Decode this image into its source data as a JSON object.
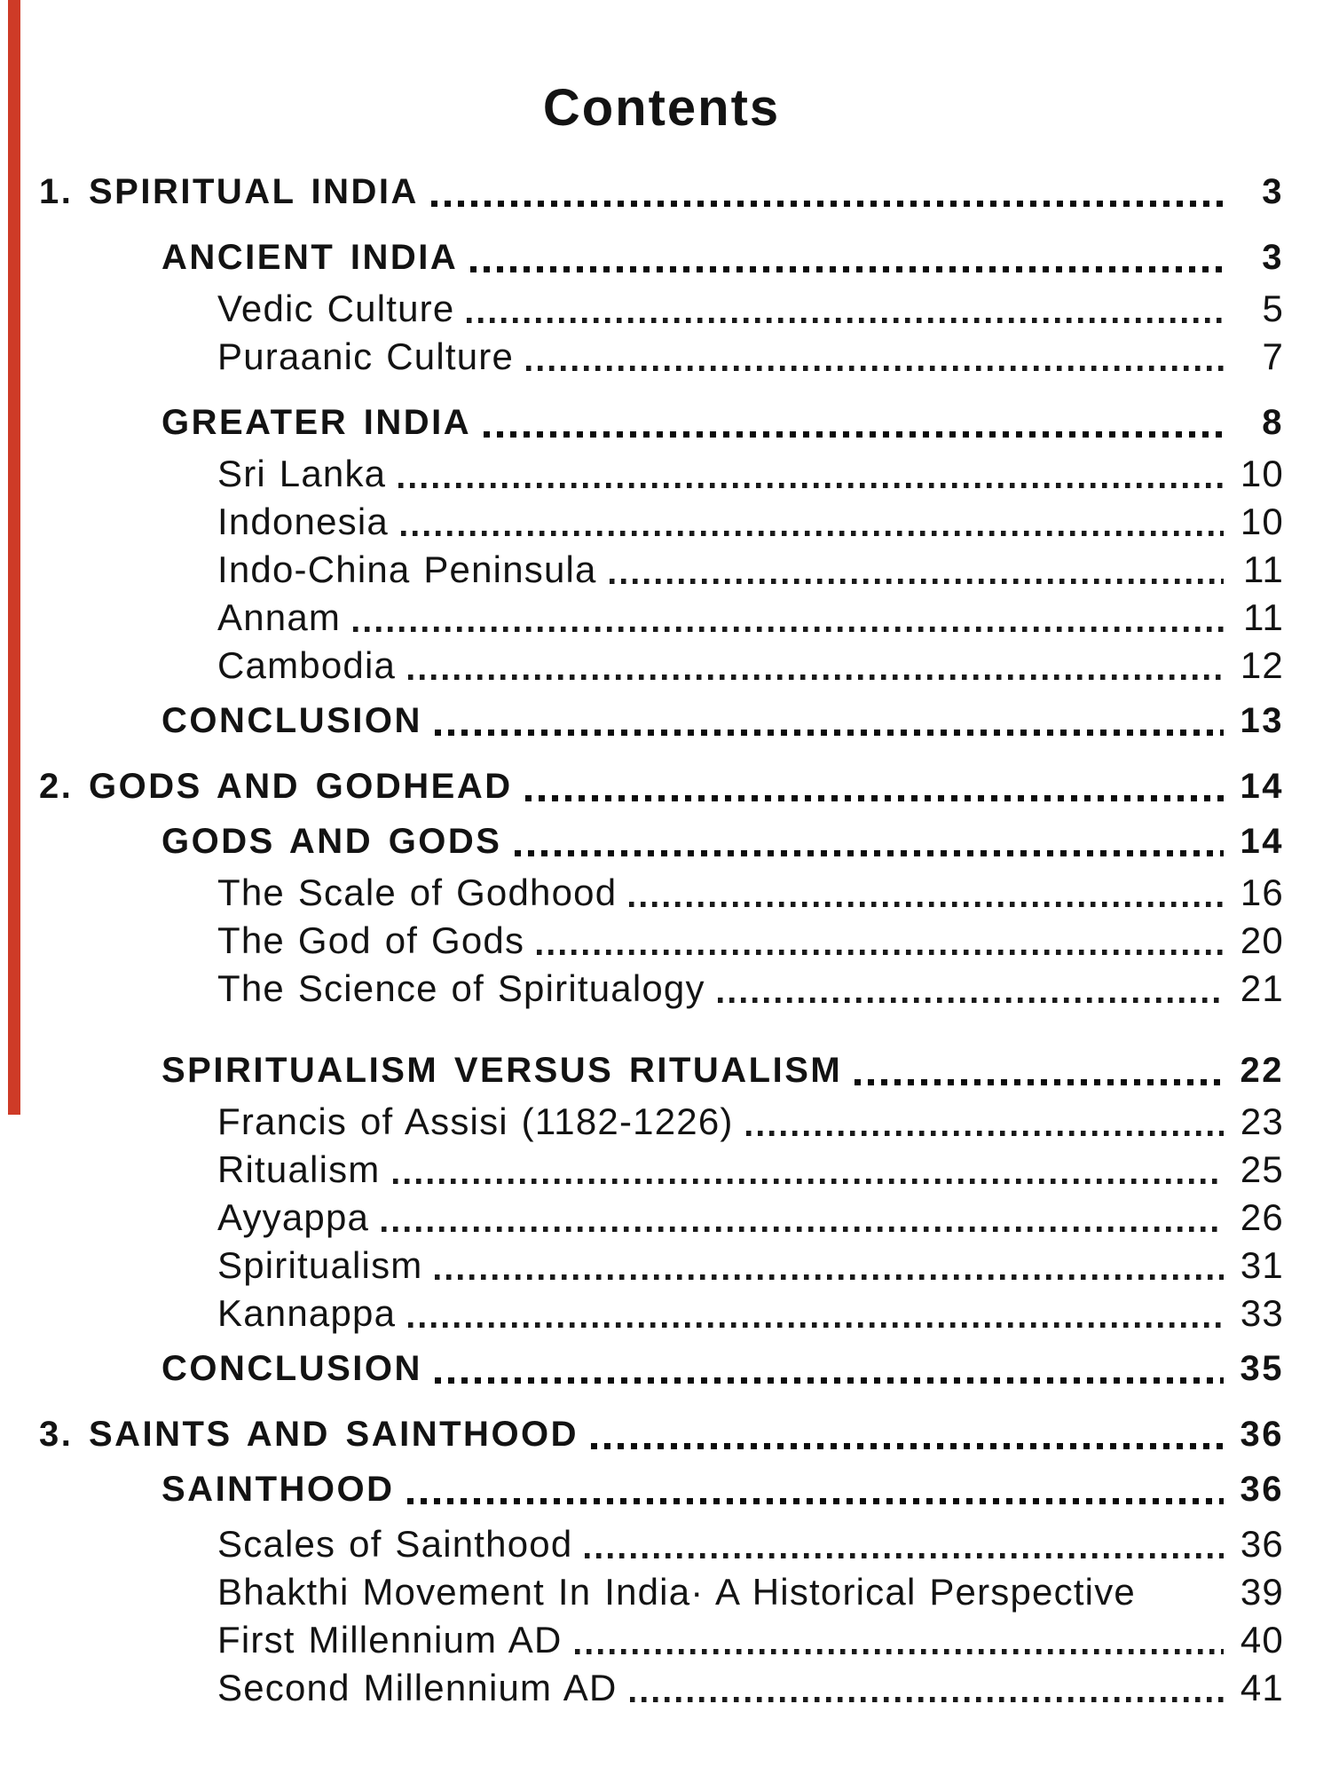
{
  "page": {
    "title": "Contents"
  },
  "colors": {
    "text": "#131313",
    "background": "#ffffff",
    "margin_bar": "#ce3b27"
  },
  "toc": {
    "entries": [
      {
        "label": "1. SPIRITUAL INDIA",
        "page": "3",
        "level": 1,
        "bold": true,
        "leader": true,
        "spacing": "none"
      },
      {
        "label": "ANCIENT INDIA",
        "page": "3",
        "level": 2,
        "bold": true,
        "leader": true,
        "spacing": "lg"
      },
      {
        "label": "Vedic Culture",
        "page": "5",
        "level": 3,
        "bold": false,
        "leader": true,
        "spacing": "sm"
      },
      {
        "label": "Puraanic Culture",
        "page": "7",
        "level": 3,
        "bold": false,
        "leader": true,
        "spacing": "none"
      },
      {
        "label": "GREATER INDIA",
        "page": "8",
        "level": 2,
        "bold": true,
        "leader": true,
        "spacing": "lg"
      },
      {
        "label": "Sri Lanka",
        "page": "10",
        "level": 3,
        "bold": false,
        "leader": true,
        "spacing": "sm"
      },
      {
        "label": "Indonesia",
        "page": "10",
        "level": 3,
        "bold": false,
        "leader": true,
        "spacing": "none"
      },
      {
        "label": "Indo-China Peninsula",
        "page": "11",
        "level": 3,
        "bold": false,
        "leader": true,
        "spacing": "none"
      },
      {
        "label": "Annam",
        "page": "11",
        "level": 3,
        "bold": false,
        "leader": true,
        "spacing": "none"
      },
      {
        "label": "Cambodia",
        "page": "12",
        "level": 3,
        "bold": false,
        "leader": true,
        "spacing": "none"
      },
      {
        "label": "CONCLUSION",
        "page": "13",
        "level": 2,
        "bold": true,
        "leader": true,
        "spacing": "md"
      },
      {
        "label": "2. GODS AND GODHEAD",
        "page": "14",
        "level": 1,
        "bold": true,
        "leader": true,
        "spacing": "lg"
      },
      {
        "label": "GODS AND GODS",
        "page": "14",
        "level": 2,
        "bold": true,
        "leader": true,
        "spacing": "md"
      },
      {
        "label": "The Scale of Godhood",
        "page": "16",
        "level": 3,
        "bold": false,
        "leader": true,
        "spacing": "sm"
      },
      {
        "label": "The God of Gods",
        "page": "20",
        "level": 3,
        "bold": false,
        "leader": true,
        "spacing": "none"
      },
      {
        "label": "The Science of Spiritualogy",
        "page": "21",
        "level": 3,
        "bold": false,
        "leader": true,
        "spacing": "none"
      },
      {
        "label": "SPIRITUALISM VERSUS RITUALISM",
        "page": "22",
        "level": 2,
        "bold": true,
        "leader": true,
        "spacing": "xl"
      },
      {
        "label": "Francis of Assisi (1182-1226)",
        "page": "23",
        "level": 3,
        "bold": false,
        "leader": true,
        "spacing": "sm"
      },
      {
        "label": "Ritualism",
        "page": "25",
        "level": 3,
        "bold": false,
        "leader": true,
        "spacing": "none"
      },
      {
        "label": "Ayyappa",
        "page": "26",
        "level": 3,
        "bold": false,
        "leader": true,
        "spacing": "none"
      },
      {
        "label": "Spiritualism",
        "page": "31",
        "level": 3,
        "bold": false,
        "leader": true,
        "spacing": "none"
      },
      {
        "label": "Kannappa",
        "page": "33",
        "level": 3,
        "bold": false,
        "leader": true,
        "spacing": "none"
      },
      {
        "label": "CONCLUSION",
        "page": "35",
        "level": 2,
        "bold": true,
        "leader": true,
        "spacing": "md"
      },
      {
        "label": "3. SAINTS AND SAINTHOOD",
        "page": "36",
        "level": 1,
        "bold": true,
        "leader": true,
        "spacing": "lg"
      },
      {
        "label": "SAINTHOOD",
        "page": "36",
        "level": 2,
        "bold": true,
        "leader": true,
        "spacing": "md"
      },
      {
        "label": "Scales of Sainthood",
        "page": "36",
        "level": 3,
        "bold": false,
        "leader": true,
        "spacing": "md"
      },
      {
        "label": "Bhakthi Movement In India· A Historical Perspective",
        "page": "39",
        "level": 3,
        "bold": false,
        "leader": false,
        "spacing": "none"
      },
      {
        "label": "First Millennium AD",
        "page": "40",
        "level": 3,
        "bold": false,
        "leader": true,
        "spacing": "none"
      },
      {
        "label": "Second Millennium AD",
        "page": "41",
        "level": 3,
        "bold": false,
        "leader": true,
        "spacing": "none"
      }
    ]
  }
}
